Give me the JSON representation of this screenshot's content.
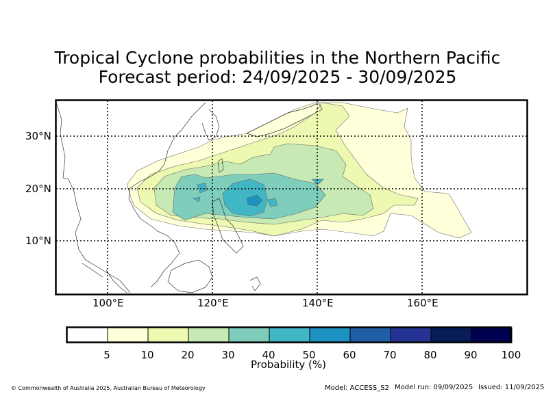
{
  "title_line1": "Tropical Cyclone probabilities in the Northern Pacific",
  "title_line2": "Forecast period: 24/09/2025 - 30/09/2025",
  "lat_labels": [
    "30°N",
    "20°N",
    "10°N"
  ],
  "lon_labels": [
    "100°E",
    "120°E",
    "140°E",
    "160°E"
  ],
  "colorbar": {
    "ticks": [
      "5",
      "10",
      "20",
      "30",
      "40",
      "50",
      "60",
      "70",
      "80",
      "90",
      "100"
    ],
    "colors": [
      "#ffffff",
      "#ffffd9",
      "#edf8b1",
      "#c7e9b4",
      "#7fcdbb",
      "#41b6c4",
      "#1d91c0",
      "#225ea8",
      "#253494",
      "#081d58",
      "#000050"
    ],
    "label": "Probability (%)"
  },
  "footer": {
    "copyright": "© Commonwealth of Australia 2025, Australian Bureau of Meteorology",
    "model": "Model: ACCESS_S2",
    "model_run": "Model run: 09/09/2025",
    "issued": "Issued: 11/09/2025"
  }
}
